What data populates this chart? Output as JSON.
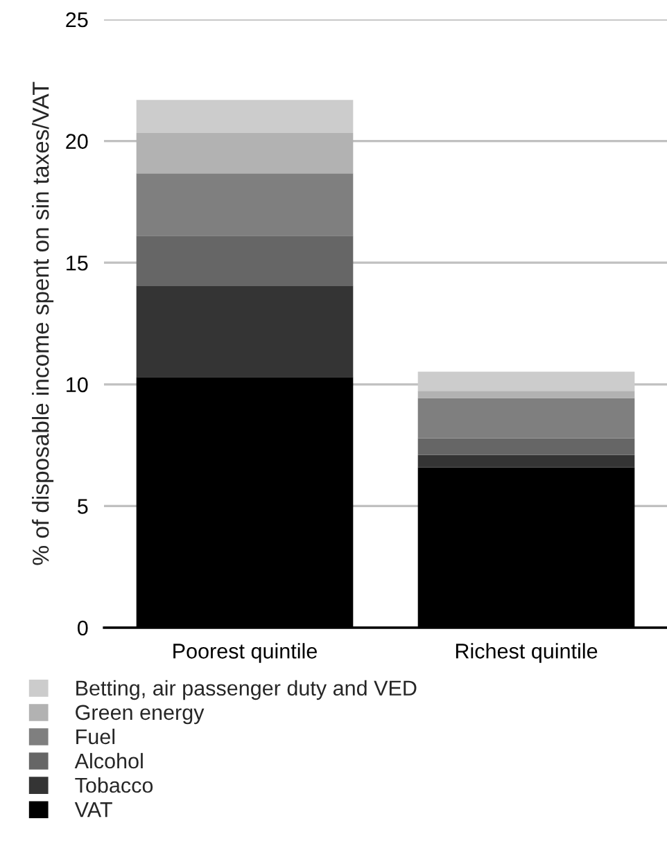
{
  "chart_data": {
    "type": "bar",
    "stacked": true,
    "ylabel": "% of disposable income spent on sin taxes/VAT",
    "categories": [
      "Poorest quintile",
      "Richest quintile"
    ],
    "series": [
      {
        "name": "VAT",
        "color": "#000000",
        "values": [
          10.3,
          6.59
        ]
      },
      {
        "name": "Tobacco",
        "color": "#343434",
        "values": [
          3.76,
          0.51
        ]
      },
      {
        "name": "Alcohol",
        "color": "#666666",
        "values": [
          2.05,
          0.69
        ]
      },
      {
        "name": "Fuel",
        "color": "#7f7f7f",
        "values": [
          2.56,
          1.65
        ]
      },
      {
        "name": "Green energy",
        "color": "#b2b2b2",
        "values": [
          1.66,
          0.29
        ]
      },
      {
        "name": "Betting, air passenger duty and VED",
        "color": "#cccccc",
        "values": [
          1.36,
          0.79
        ]
      }
    ],
    "ylim": [
      0,
      25
    ],
    "yticks": [
      0,
      5,
      10,
      15,
      20,
      25
    ],
    "grid": "y",
    "legend": "bottom"
  }
}
